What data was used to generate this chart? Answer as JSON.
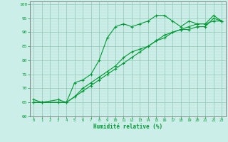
{
  "xlabel": "Humidité relative (%)",
  "xlim": [
    -0.5,
    23.5
  ],
  "ylim": [
    60,
    101
  ],
  "yticks": [
    60,
    65,
    70,
    75,
    80,
    85,
    90,
    95,
    100
  ],
  "xticks": [
    0,
    1,
    2,
    3,
    4,
    5,
    6,
    7,
    8,
    9,
    10,
    11,
    12,
    13,
    14,
    15,
    16,
    17,
    18,
    19,
    20,
    21,
    22,
    23
  ],
  "bg_color": "#cceee8",
  "grid_major_color": "#99ccbb",
  "grid_minor_color": "#bbddd5",
  "line_color": "#009933",
  "line1_x": [
    0,
    1,
    3,
    4,
    5,
    6,
    7,
    8,
    9,
    10,
    11,
    12,
    13,
    14,
    15,
    16,
    17,
    18,
    19,
    20,
    21,
    22,
    23
  ],
  "line1_y": [
    66,
    65,
    66,
    65,
    72,
    73,
    75,
    80,
    88,
    92,
    93,
    92,
    93,
    94,
    96,
    96,
    94,
    92,
    94,
    93,
    93,
    96,
    94
  ],
  "line2_x": [
    0,
    1,
    3,
    4,
    5,
    6,
    7,
    8,
    9,
    10,
    11,
    12,
    13,
    14,
    15,
    16,
    17,
    18,
    19,
    20,
    21,
    22,
    23
  ],
  "line2_y": [
    65,
    65,
    65,
    65,
    67,
    69,
    71,
    73,
    75,
    77,
    79,
    81,
    83,
    85,
    87,
    89,
    90,
    91,
    91,
    92,
    92,
    95,
    94
  ],
  "line3_x": [
    0,
    1,
    3,
    4,
    5,
    6,
    7,
    8,
    9,
    10,
    11,
    12,
    13,
    14,
    15,
    16,
    17,
    18,
    19,
    20,
    21,
    22,
    23
  ],
  "line3_y": [
    65,
    65,
    65,
    65,
    67,
    70,
    72,
    74,
    76,
    78,
    81,
    83,
    84,
    85,
    87,
    88,
    90,
    91,
    92,
    93,
    93,
    94,
    94
  ]
}
